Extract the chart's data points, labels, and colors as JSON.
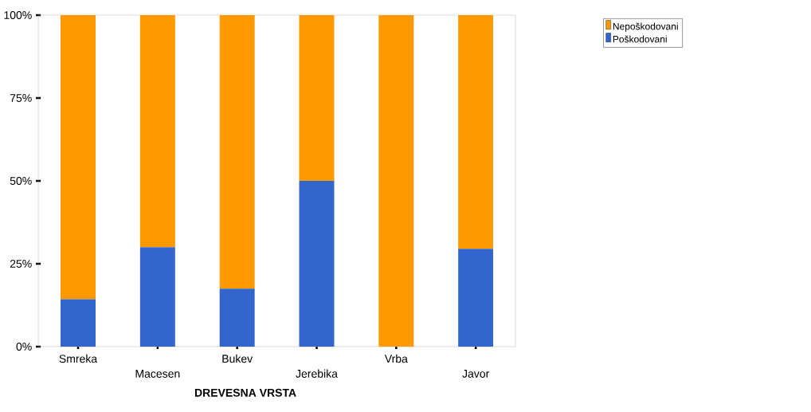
{
  "chart_data": {
    "type": "bar",
    "stacked": true,
    "xlabel": "DREVESNA VRSTA",
    "categories": [
      "Smreka",
      "Macesen",
      "Bukev",
      "Jerebika",
      "Vrba",
      "Javor"
    ],
    "series": [
      {
        "name": "Poškodovani",
        "color": "#3366cc",
        "values": [
          14.3,
          30,
          17.5,
          50,
          0,
          29.5
        ]
      },
      {
        "name": "Nepoškodovani",
        "color": "#ff9900",
        "values": [
          85.7,
          70,
          82.5,
          50,
          100,
          70.5
        ]
      }
    ],
    "ylim": [
      0,
      100
    ],
    "yticks": [
      {
        "value": 0,
        "label": "0%"
      },
      {
        "value": 25,
        "label": "25%"
      },
      {
        "value": 50,
        "label": "50%"
      },
      {
        "value": 75,
        "label": "75%"
      },
      {
        "value": 100,
        "label": "100%"
      }
    ],
    "legend": "top right"
  }
}
